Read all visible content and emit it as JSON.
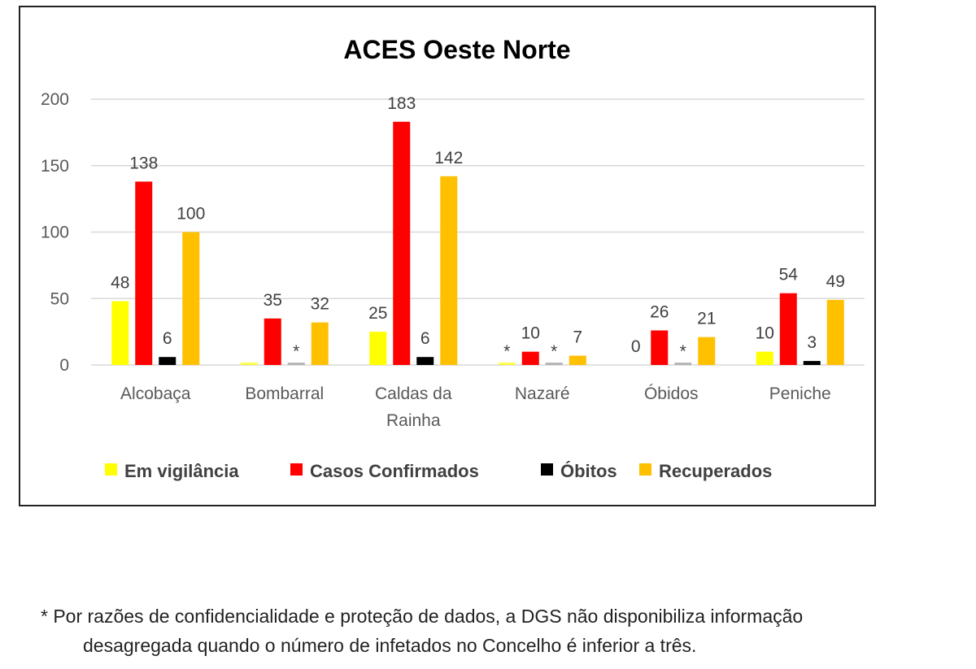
{
  "chart_data": {
    "type": "bar",
    "title": "ACES Oeste Norte",
    "xlabel": "",
    "ylabel": "",
    "ylim": [
      0,
      200
    ],
    "yticks": [
      0,
      50,
      100,
      150,
      200
    ],
    "grid": true,
    "legend": "bottom",
    "categories": [
      [
        "Alcobaça"
      ],
      [
        "Bombarral"
      ],
      [
        "Caldas da",
        "Rainha"
      ],
      [
        "Nazaré"
      ],
      [
        "Óbidos"
      ],
      [
        "Peniche"
      ]
    ],
    "series": [
      {
        "name": "Em vigilância",
        "color": "#FFFF00",
        "values": [
          48,
          null,
          25,
          null,
          0,
          10
        ],
        "labels": [
          "48",
          "",
          "25",
          "*",
          "0",
          "10"
        ]
      },
      {
        "name": "Casos Confirmados",
        "color": "#FF0000",
        "values": [
          138,
          35,
          183,
          10,
          26,
          54
        ],
        "labels": [
          "138",
          "35",
          "183",
          "10",
          "26",
          "54"
        ]
      },
      {
        "name": "Óbitos",
        "color": "#000000",
        "values": [
          6,
          null,
          6,
          null,
          null,
          3
        ],
        "labels": [
          "6",
          "*",
          "6",
          "*",
          "*",
          "3"
        ]
      },
      {
        "name": "Recuperados",
        "color": "#FFC000",
        "values": [
          100,
          32,
          142,
          7,
          21,
          49
        ],
        "labels": [
          "100",
          "32",
          "142",
          "7",
          "21",
          "49"
        ]
      }
    ]
  },
  "footnote": {
    "line1": "* Por razões de confidencialidade e proteção de dados, a DGS não disponibiliza informação",
    "line2": "desagregada quando o número de infetados no Concelho é inferior a três."
  }
}
